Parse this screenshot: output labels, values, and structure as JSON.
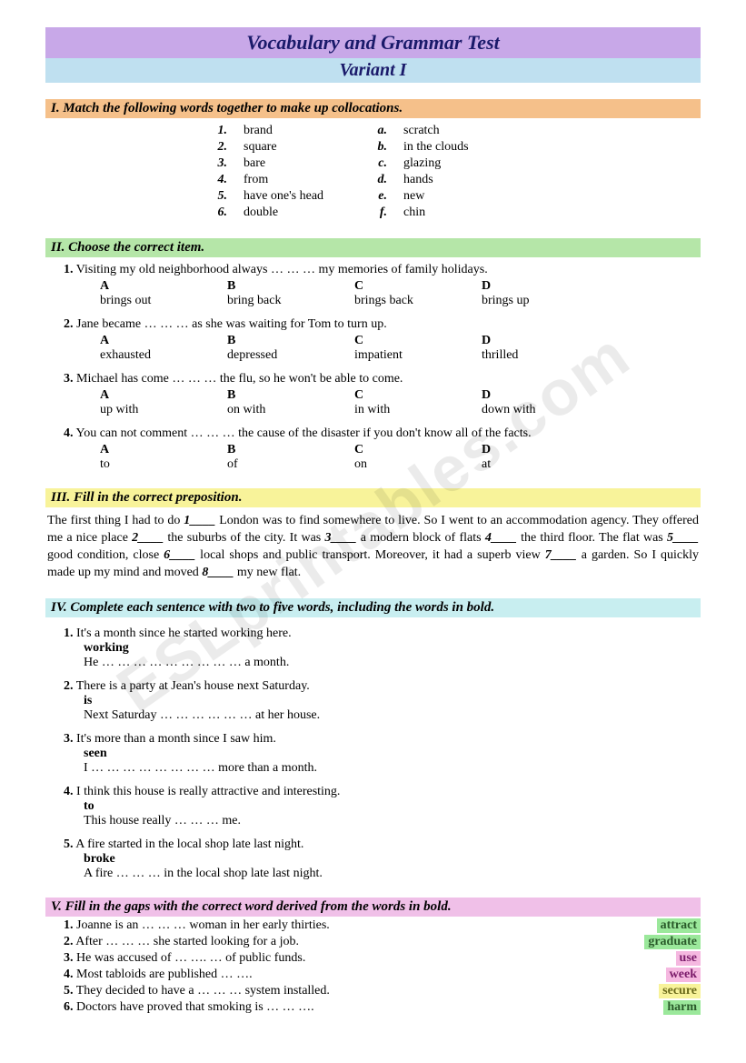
{
  "header": {
    "title": "Vocabulary and Grammar Test",
    "subtitle": "Variant I"
  },
  "watermark": "ESLprintables.com",
  "section1": {
    "heading": "I.    Match the following words together to make up collocations.",
    "left": [
      {
        "n": "1.",
        "t": "brand"
      },
      {
        "n": "2.",
        "t": "square"
      },
      {
        "n": "3.",
        "t": "bare"
      },
      {
        "n": "4.",
        "t": "from"
      },
      {
        "n": "5.",
        "t": "have one's head"
      },
      {
        "n": "6.",
        "t": "double"
      }
    ],
    "right": [
      {
        "n": "a.",
        "t": "scratch"
      },
      {
        "n": "b.",
        "t": "in the clouds"
      },
      {
        "n": "c.",
        "t": "glazing"
      },
      {
        "n": "d.",
        "t": "hands"
      },
      {
        "n": "e.",
        "t": "new"
      },
      {
        "n": "f.",
        "t": "chin"
      }
    ]
  },
  "section2": {
    "heading": "II. Choose the correct item.",
    "questions": [
      {
        "n": "1.",
        "text": "Visiting my old neighborhood always … … … my memories of family holidays.",
        "opts": {
          "A": "brings out",
          "B": "bring back",
          "C": "brings back",
          "D": "brings up"
        }
      },
      {
        "n": "2.",
        "text": "Jane became … … … as she was waiting for Tom to turn up.",
        "opts": {
          "A": "exhausted",
          "B": "depressed",
          "C": "impatient",
          "D": "thrilled"
        }
      },
      {
        "n": "3.",
        "text": "Michael has come … … … the flu, so he won't be able to come.",
        "opts": {
          "A": "up with",
          "B": "on with",
          "C": "in with",
          "D": "down with"
        }
      },
      {
        "n": "4.",
        "text": " You can not comment … … … the cause of the disaster if you don't know all of the facts.",
        "opts": {
          "A": "to",
          "B": "of",
          "C": "on",
          "D": "at"
        }
      }
    ]
  },
  "section3": {
    "heading": "III.   Fill in the correct preposition.",
    "para_pre": "      The first thing I had to do ",
    "l1": "1____",
    "p1": " London was to find somewhere to live. So I went to an accommodation agency. They offered me a nice place ",
    "l2": "2____",
    "p2": " the suburbs of the city. It was ",
    "l3": "3____",
    "p3": " a modern block of flats ",
    "l4": "4____",
    "p4": " the third floor. The flat was ",
    "l5": "5____",
    "p5": " good condition, close ",
    "l6": "6____",
    "p6": " local shops and public transport. Moreover, it had a superb view ",
    "l7": "7____",
    "p7": " a garden. So I quickly made up my mind and moved ",
    "l8": "8____",
    "p8": " my new flat."
  },
  "section4": {
    "heading": "IV. Complete each sentence with two to five words, including the words in bold.",
    "items": [
      {
        "n": "1.",
        "line1": "It's a month since he started working here.",
        "bold": "working",
        "line2": "He … … … … … … … … … a month."
      },
      {
        "n": "2.",
        "line1": "There is a party at Jean's house next Saturday.",
        "bold": "is",
        "line2": "Next Saturday … … … … … … at her house."
      },
      {
        "n": "3.",
        "line1": "It's more than a month since I saw him.",
        "bold": "seen",
        "line2": "I … … … … … … … … more than a month."
      },
      {
        "n": "4.",
        "line1": "I think this house is really attractive and interesting.",
        "bold": "to",
        "line2": "This house really … … … me."
      },
      {
        "n": "5.",
        "line1": "A fire started in the local shop late last night.",
        "bold": "broke",
        "line2": "A fire … … … in the local shop late last night."
      }
    ]
  },
  "section5": {
    "heading": "V.   Fill in the gaps with the correct word derived from the words in bold.",
    "items": [
      {
        "n": "1.",
        "text": "Joanne is an … … … woman in her early thirties.",
        "word": "attract",
        "cls": "w-attract"
      },
      {
        "n": "2.",
        "text": "After … … … she started looking for a job.",
        "word": "graduate",
        "cls": "w-graduate"
      },
      {
        "n": "3.",
        "text": "He was accused of … …. … of public funds.",
        "word": "use",
        "cls": "w-use"
      },
      {
        "n": "4.",
        "text": "Most tabloids are published … ….",
        "word": "week",
        "cls": "w-week"
      },
      {
        "n": "5.",
        "text": "They decided to have a … … … system installed.",
        "word": "secure",
        "cls": "w-secure"
      },
      {
        "n": "6.",
        "text": "Doctors have proved that smoking is … … ….",
        "word": "harm",
        "cls": "w-harm"
      }
    ]
  }
}
